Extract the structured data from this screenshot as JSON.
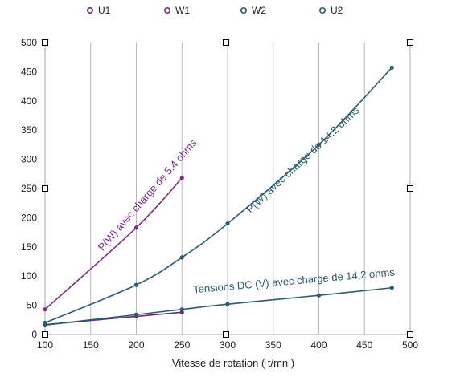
{
  "chart_data": {
    "type": "line",
    "xlabel": "Vitesse de rotation  ( t/mn )",
    "ylabel": "",
    "xlim": [
      100,
      500
    ],
    "ylim": [
      0,
      500
    ],
    "xticks": [
      100,
      150,
      200,
      250,
      300,
      350,
      400,
      450,
      500
    ],
    "yticks": [
      0,
      50,
      100,
      150,
      200,
      250,
      300,
      350,
      400,
      450,
      500
    ],
    "grid": "vertical",
    "legend": "top",
    "series": [
      {
        "name": "U1",
        "color": "#6b2a6e",
        "x": [
          100,
          200,
          250
        ],
        "y": [
          17,
          31,
          38
        ]
      },
      {
        "name": "W1",
        "color": "#7a2d7e",
        "x": [
          100,
          200,
          250
        ],
        "y": [
          43,
          183,
          268
        ]
      },
      {
        "name": "W2",
        "color": "#2b5a73",
        "x": [
          100,
          200,
          250,
          300,
          400,
          480
        ],
        "y": [
          20,
          85,
          132,
          190,
          325,
          457
        ]
      },
      {
        "name": "U2",
        "color": "#2b5a73",
        "x": [
          100,
          200,
          250,
          300,
          400,
          480
        ],
        "y": [
          16,
          34,
          43,
          52,
          67,
          80
        ]
      }
    ],
    "annotations": [
      {
        "text": "P(W) avec charge de 5.4 ohms",
        "color": "#7a2d7e",
        "x": 215,
        "y": 235,
        "angle": -49
      },
      {
        "text": "P(W) avec charge de 14,2 ohms",
        "color": "#2b5a73",
        "x": 385,
        "y": 295,
        "angle": -43
      },
      {
        "text": "Tensions DC (V) avec charge de 14,2 ohms",
        "color": "#2b5a73",
        "x": 373,
        "y": 86,
        "angle": -5
      }
    ]
  }
}
